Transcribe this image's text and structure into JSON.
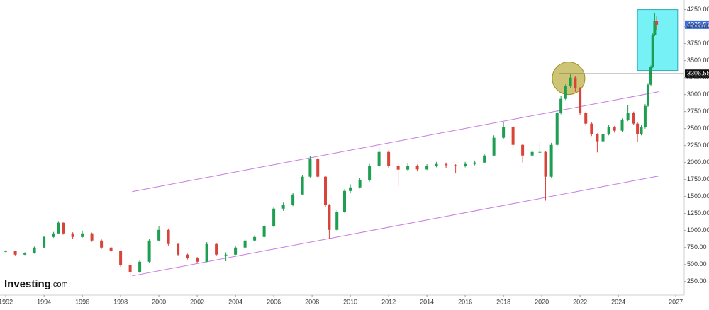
{
  "chart_data": {
    "type": "candlestick",
    "logo": {
      "brand": "Investing",
      "suffix": ".com"
    },
    "xlim": [
      1991.7,
      2027.44
    ],
    "xticks": [
      1992,
      1994,
      1996,
      1998,
      2000,
      2002,
      2004,
      2006,
      2008,
      2010,
      2012,
      2014,
      2016,
      2018,
      2020,
      2022,
      2024,
      2027
    ],
    "ylim": [
      50,
      4350
    ],
    "yticks": [
      {
        "value": 250,
        "label": "250.00"
      },
      {
        "value": 500,
        "label": "500.00"
      },
      {
        "value": 750,
        "label": "750.00"
      },
      {
        "value": 1000,
        "label": "1000.00"
      },
      {
        "value": 1250,
        "label": "1250.00"
      },
      {
        "value": 1500,
        "label": "1500.00"
      },
      {
        "value": 1750,
        "label": "1750.00"
      },
      {
        "value": 2000,
        "label": "2000.00"
      },
      {
        "value": 2250,
        "label": "2250.00"
      },
      {
        "value": 2500,
        "label": "2500.00"
      },
      {
        "value": 2750,
        "label": "2750.00"
      },
      {
        "value": 3000,
        "label": "3000.00"
      },
      {
        "value": 3250,
        "label": "3250.00"
      },
      {
        "value": 3500,
        "label": "3500.00"
      },
      {
        "value": 3750,
        "label": "3750.00"
      },
      {
        "value": 4000,
        "label": "4000.00"
      },
      {
        "value": 4250,
        "label": "4250.00"
      }
    ],
    "grid": false,
    "up_color": "#1e9e52",
    "down_color": "#d9443a",
    "series": [
      {
        "x": [
          1992.0,
          1992.5,
          1993.0,
          1993.5,
          1994.0,
          1994.5,
          1994.75,
          1995.0,
          1995.5,
          1996.0,
          1996.5,
          1997.0,
          1997.5,
          1998.0,
          1998.5,
          1999.0,
          1999.5,
          2000.0,
          2000.5,
          2001.0,
          2001.5,
          2002.0,
          2002.5,
          2003.0,
          2003.5,
          2004.0,
          2004.5,
          2005.0,
          2005.5,
          2006.0,
          2006.5,
          2007.0,
          2007.5,
          2007.9,
          2008.3,
          2008.7,
          2008.9,
          2009.3,
          2009.7,
          2010.0,
          2010.5,
          2011.0,
          2011.5,
          2012.0,
          2012.5,
          2013.0,
          2013.5,
          2014.0,
          2014.5,
          2015.0,
          2015.5,
          2016.0,
          2016.5,
          2017.0,
          2017.5,
          2018.0,
          2018.5,
          2019.0,
          2019.5,
          2019.9,
          2020.2,
          2020.5,
          2020.8,
          2021.0,
          2021.25,
          2021.5,
          2021.75,
          2022.0,
          2022.3,
          2022.6,
          2022.9,
          2023.2,
          2023.5,
          2023.8,
          2024.2,
          2024.5,
          2024.8,
          2025.0,
          2025.2,
          2025.4,
          2025.55,
          2025.7,
          2025.8,
          2025.9,
          2026.0
        ],
        "open": [
          690,
          698,
          646,
          667,
          750,
          906,
          958,
          1115,
          958,
          906,
          958,
          854,
          750,
          698,
          490,
          385,
          542,
          854,
          1010,
          802,
          646,
          594,
          542,
          802,
          646,
          646,
          750,
          854,
          906,
          1063,
          1323,
          1375,
          1531,
          1792,
          2052,
          1792,
          1375,
          1010,
          1271,
          1583,
          1635,
          1740,
          1948,
          2156,
          1948,
          1896,
          1948,
          1900,
          1948,
          1979,
          1960,
          1948,
          1979,
          2000,
          2104,
          2365,
          2521,
          2260,
          2104,
          2156,
          2156,
          1792,
          2260,
          2729,
          2937,
          3125,
          3250,
          3094,
          2729,
          2573,
          2417,
          2313,
          2417,
          2521,
          2469,
          2625,
          2729,
          2573,
          2417,
          2521,
          2833,
          3146,
          3406,
          3875,
          4083
        ],
        "high": [
          710,
          705,
          680,
          765,
          925,
          980,
          1140,
          1120,
          975,
          1000,
          970,
          870,
          780,
          710,
          520,
          560,
          880,
          1060,
          1030,
          815,
          660,
          610,
          830,
          815,
          680,
          770,
          880,
          930,
          1090,
          1350,
          1410,
          1560,
          1820,
          2100,
          2070,
          1810,
          1390,
          1300,
          1610,
          1680,
          1770,
          1980,
          2230,
          2180,
          1990,
          1990,
          1970,
          1975,
          2010,
          2000,
          1975,
          2010,
          2030,
          2130,
          2400,
          2600,
          2540,
          2280,
          2190,
          2290,
          2170,
          2290,
          2760,
          2980,
          3160,
          3300,
          3270,
          3110,
          2750,
          2590,
          2430,
          2440,
          2550,
          2540,
          2650,
          2850,
          2750,
          2590,
          2550,
          2860,
          3170,
          3430,
          3900,
          4200,
          4150
        ],
        "low": [
          680,
          635,
          640,
          660,
          745,
          895,
          950,
          940,
          880,
          895,
          835,
          730,
          680,
          470,
          320,
          375,
          530,
          840,
          780,
          630,
          575,
          520,
          535,
          630,
          550,
          640,
          740,
          840,
          895,
          1050,
          1290,
          1360,
          1520,
          1780,
          1770,
          1350,
          880,
          990,
          1260,
          1560,
          1620,
          1720,
          1930,
          1920,
          1650,
          1880,
          1870,
          1890,
          1930,
          1920,
          1840,
          1930,
          1960,
          1990,
          2090,
          2350,
          2230,
          2000,
          2080,
          2140,
          1440,
          1780,
          2240,
          2710,
          2920,
          3100,
          3040,
          2700,
          2540,
          2390,
          2150,
          2290,
          2400,
          2440,
          2450,
          2610,
          2550,
          2300,
          2400,
          2500,
          2820,
          3130,
          3390,
          3860,
          3950
        ],
        "close": [
          698,
          646,
          667,
          750,
          906,
          958,
          1115,
          958,
          906,
          958,
          854,
          750,
          698,
          490,
          385,
          542,
          854,
          1010,
          802,
          646,
          594,
          542,
          802,
          646,
          646,
          750,
          854,
          906,
          1063,
          1323,
          1375,
          1531,
          1792,
          2052,
          1792,
          1375,
          1010,
          1271,
          1583,
          1635,
          1740,
          1948,
          2156,
          1948,
          1896,
          1948,
          1900,
          1948,
          1979,
          1960,
          1948,
          1979,
          2000,
          2104,
          2365,
          2521,
          2260,
          2104,
          2156,
          2156,
          1792,
          2260,
          2729,
          2937,
          3125,
          3250,
          3094,
          2729,
          2573,
          2417,
          2313,
          2417,
          2521,
          2469,
          2625,
          2729,
          2573,
          2417,
          2521,
          2833,
          3146,
          3406,
          3875,
          4083,
          4028.51
        ]
      }
    ],
    "channel_color": "#c77be0",
    "channel_lines": [
      {
        "x": [
          1998.6,
          2026.1
        ],
        "y": [
          1573,
          3042
        ]
      },
      {
        "x": [
          1998.6,
          2026.1
        ],
        "y": [
          333,
          1802
        ]
      }
    ],
    "highlight_ellipse": {
      "x": 2021.4,
      "y": 3240
    },
    "highlight_box": {
      "x": [
        2025.0,
        2027.1
      ],
      "y": [
        3354,
        4250
      ]
    },
    "level_line": {
      "value": 3306.55,
      "x_start": 2020.9
    }
  }
}
